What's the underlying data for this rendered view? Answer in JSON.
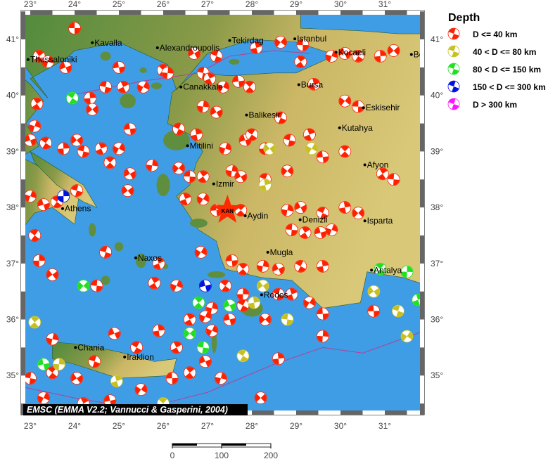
{
  "map": {
    "lon_range": [
      22.8,
      31.9
    ],
    "lat_range": [
      34.3,
      41.5
    ],
    "lon_ticks": [
      23,
      24,
      25,
      26,
      27,
      28,
      29,
      30,
      31
    ],
    "lat_ticks": [
      35,
      36,
      37,
      38,
      39,
      40,
      41
    ],
    "degree_symbol": "°",
    "colors": {
      "sea": "#3f9de6",
      "lowland": "#4f8a3c",
      "upland": "#cbb766",
      "fault": "#b0409a"
    },
    "credit": "EMSC (EMMA V2.2; Vannucci & Gasperini, 2004)",
    "marker": {
      "label": "KAN",
      "lon": 27.45,
      "lat": 37.95,
      "color": "#ff2a00"
    },
    "cities": [
      {
        "name": "Thessaloniki",
        "lon": 22.95,
        "lat": 40.64
      },
      {
        "name": "Kavalla",
        "lon": 24.4,
        "lat": 40.94
      },
      {
        "name": "Alexandroupolis",
        "lon": 25.87,
        "lat": 40.85
      },
      {
        "name": "Tekirdag",
        "lon": 27.5,
        "lat": 40.98
      },
      {
        "name": "Istanbul",
        "lon": 28.97,
        "lat": 41.01
      },
      {
        "name": "Kocaeli",
        "lon": 29.9,
        "lat": 40.77
      },
      {
        "name": "Bolu",
        "lon": 31.6,
        "lat": 40.73
      },
      {
        "name": "Canakkale",
        "lon": 26.4,
        "lat": 40.15
      },
      {
        "name": "Bursa",
        "lon": 29.06,
        "lat": 40.19
      },
      {
        "name": "Eskisehir",
        "lon": 30.52,
        "lat": 39.78
      },
      {
        "name": "Balikesir",
        "lon": 27.88,
        "lat": 39.65
      },
      {
        "name": "Kutahya",
        "lon": 29.98,
        "lat": 39.42
      },
      {
        "name": "Mitilini",
        "lon": 26.55,
        "lat": 39.1
      },
      {
        "name": "Afyon",
        "lon": 30.55,
        "lat": 38.76
      },
      {
        "name": "Izmir",
        "lon": 27.14,
        "lat": 38.42
      },
      {
        "name": "Athens",
        "lon": 23.73,
        "lat": 37.98
      },
      {
        "name": "Aydin",
        "lon": 27.85,
        "lat": 37.85
      },
      {
        "name": "Denizli",
        "lon": 29.09,
        "lat": 37.78
      },
      {
        "name": "Isparta",
        "lon": 30.55,
        "lat": 37.76
      },
      {
        "name": "Mugla",
        "lon": 28.36,
        "lat": 37.2
      },
      {
        "name": "Naxos",
        "lon": 25.38,
        "lat": 37.1
      },
      {
        "name": "Rodos",
        "lon": 28.22,
        "lat": 36.44
      },
      {
        "name": "Antalya",
        "lon": 30.7,
        "lat": 36.88
      },
      {
        "name": "Chania",
        "lon": 24.02,
        "lat": 35.5
      },
      {
        "name": "Iraklion",
        "lon": 25.13,
        "lat": 35.33
      }
    ],
    "events": [
      [
        24.0,
        41.2,
        "r"
      ],
      [
        23.2,
        40.7,
        "r"
      ],
      [
        23.4,
        40.6,
        "r"
      ],
      [
        23.8,
        40.5,
        "r"
      ],
      [
        23.95,
        39.95,
        "g"
      ],
      [
        24.35,
        39.95,
        "r"
      ],
      [
        24.4,
        39.75,
        "r"
      ],
      [
        24.7,
        40.15,
        "r"
      ],
      [
        25.1,
        40.15,
        "r"
      ],
      [
        25.55,
        40.15,
        "r"
      ],
      [
        25.0,
        40.5,
        "r"
      ],
      [
        26.0,
        40.45,
        "r"
      ],
      [
        26.1,
        40.4,
        "r"
      ],
      [
        26.7,
        40.75,
        "r"
      ],
      [
        27.2,
        40.7,
        "r"
      ],
      [
        28.1,
        40.85,
        "r"
      ],
      [
        28.65,
        40.95,
        "r"
      ],
      [
        29.15,
        40.9,
        "r"
      ],
      [
        29.1,
        40.6,
        "r"
      ],
      [
        29.8,
        40.7,
        "r"
      ],
      [
        30.1,
        40.75,
        "r"
      ],
      [
        30.4,
        40.7,
        "r"
      ],
      [
        30.9,
        40.7,
        "r"
      ],
      [
        31.2,
        40.8,
        "r"
      ],
      [
        26.9,
        40.4,
        "r"
      ],
      [
        27.05,
        40.3,
        "r"
      ],
      [
        27.35,
        40.15,
        "r"
      ],
      [
        27.7,
        40.25,
        "r"
      ],
      [
        27.95,
        40.15,
        "r"
      ],
      [
        26.9,
        39.8,
        "r"
      ],
      [
        27.2,
        39.7,
        "r"
      ],
      [
        28.65,
        39.6,
        "r"
      ],
      [
        29.4,
        40.2,
        "r"
      ],
      [
        30.1,
        39.9,
        "r"
      ],
      [
        30.4,
        39.8,
        "r"
      ],
      [
        23.15,
        39.85,
        "r"
      ],
      [
        23.1,
        39.45,
        "r"
      ],
      [
        23.0,
        39.2,
        "r"
      ],
      [
        23.35,
        39.15,
        "r"
      ],
      [
        23.75,
        39.05,
        "r"
      ],
      [
        24.05,
        39.2,
        "r"
      ],
      [
        24.2,
        39.0,
        "r"
      ],
      [
        24.6,
        39.05,
        "r"
      ],
      [
        25.0,
        39.05,
        "r"
      ],
      [
        25.25,
        39.4,
        "r"
      ],
      [
        24.8,
        38.8,
        "r"
      ],
      [
        25.75,
        38.75,
        "r"
      ],
      [
        25.25,
        38.6,
        "r"
      ],
      [
        26.35,
        39.4,
        "r"
      ],
      [
        26.75,
        39.3,
        "r"
      ],
      [
        26.35,
        38.7,
        "r"
      ],
      [
        26.6,
        38.55,
        "r"
      ],
      [
        26.9,
        38.55,
        "r"
      ],
      [
        27.4,
        39.05,
        "r"
      ],
      [
        27.85,
        39.2,
        "r"
      ],
      [
        28.0,
        39.3,
        "r"
      ],
      [
        28.3,
        39.05,
        "r"
      ],
      [
        28.4,
        39.05,
        "y"
      ],
      [
        28.85,
        39.2,
        "r"
      ],
      [
        29.3,
        39.3,
        "r"
      ],
      [
        29.35,
        39.05,
        "y"
      ],
      [
        29.6,
        38.9,
        "r"
      ],
      [
        30.1,
        39.0,
        "r"
      ],
      [
        27.55,
        38.65,
        "r"
      ],
      [
        27.75,
        38.55,
        "r"
      ],
      [
        28.3,
        38.5,
        "r"
      ],
      [
        28.3,
        38.4,
        "y"
      ],
      [
        28.8,
        38.65,
        "r"
      ],
      [
        31.2,
        38.5,
        "r"
      ],
      [
        30.95,
        38.6,
        "r"
      ],
      [
        23.0,
        38.2,
        "r"
      ],
      [
        23.3,
        38.05,
        "r"
      ],
      [
        23.6,
        38.1,
        "r"
      ],
      [
        23.75,
        38.2,
        "b"
      ],
      [
        25.2,
        38.3,
        "r"
      ],
      [
        24.05,
        38.3,
        "r"
      ],
      [
        26.5,
        38.15,
        "r"
      ],
      [
        26.9,
        38.15,
        "r"
      ],
      [
        27.2,
        37.95,
        "r"
      ],
      [
        27.75,
        37.95,
        "r"
      ],
      [
        28.8,
        37.95,
        "r"
      ],
      [
        29.1,
        38.0,
        "r"
      ],
      [
        29.6,
        37.9,
        "r"
      ],
      [
        30.1,
        38.0,
        "r"
      ],
      [
        30.4,
        37.9,
        "r"
      ],
      [
        28.9,
        37.6,
        "r"
      ],
      [
        29.2,
        37.55,
        "r"
      ],
      [
        29.8,
        37.6,
        "r"
      ],
      [
        29.55,
        37.55,
        "r"
      ],
      [
        23.1,
        37.5,
        "r"
      ],
      [
        23.2,
        37.05,
        "r"
      ],
      [
        23.5,
        36.8,
        "r"
      ],
      [
        24.7,
        37.2,
        "r"
      ],
      [
        25.9,
        37.0,
        "r"
      ],
      [
        26.85,
        37.2,
        "r"
      ],
      [
        27.55,
        37.05,
        "r"
      ],
      [
        27.8,
        36.9,
        "r"
      ],
      [
        28.25,
        36.95,
        "r"
      ],
      [
        28.6,
        36.9,
        "r"
      ],
      [
        29.1,
        36.95,
        "r"
      ],
      [
        29.6,
        36.95,
        "r"
      ],
      [
        24.2,
        36.6,
        "g"
      ],
      [
        24.5,
        36.6,
        "r"
      ],
      [
        25.8,
        36.65,
        "r"
      ],
      [
        26.3,
        36.6,
        "r"
      ],
      [
        26.95,
        36.6,
        "b"
      ],
      [
        27.4,
        36.6,
        "r"
      ],
      [
        27.8,
        36.45,
        "r"
      ],
      [
        28.25,
        36.6,
        "y"
      ],
      [
        28.6,
        36.45,
        "r"
      ],
      [
        28.9,
        36.45,
        "r"
      ],
      [
        29.3,
        36.3,
        "r"
      ],
      [
        29.6,
        36.1,
        "r"
      ],
      [
        26.8,
        36.3,
        "g"
      ],
      [
        27.1,
        36.2,
        "r"
      ],
      [
        27.5,
        36.25,
        "g"
      ],
      [
        27.8,
        36.25,
        "r"
      ],
      [
        28.05,
        36.3,
        "y"
      ],
      [
        28.3,
        36.0,
        "r"
      ],
      [
        28.8,
        36.0,
        "y"
      ],
      [
        26.6,
        36.0,
        "r"
      ],
      [
        26.95,
        36.05,
        "r"
      ],
      [
        27.5,
        36.0,
        "r"
      ],
      [
        30.9,
        36.9,
        "g"
      ],
      [
        31.5,
        36.85,
        "g"
      ],
      [
        30.75,
        36.5,
        "y"
      ],
      [
        31.3,
        36.15,
        "y"
      ],
      [
        31.75,
        36.35,
        "g"
      ],
      [
        31.5,
        35.7,
        "y"
      ],
      [
        30.75,
        36.15,
        "r"
      ],
      [
        23.1,
        35.95,
        "y"
      ],
      [
        23.5,
        35.65,
        "r"
      ],
      [
        24.9,
        35.75,
        "r"
      ],
      [
        25.4,
        35.5,
        "r"
      ],
      [
        25.9,
        35.8,
        "r"
      ],
      [
        26.6,
        35.75,
        "g"
      ],
      [
        26.9,
        35.5,
        "g"
      ],
      [
        26.3,
        35.5,
        "r"
      ],
      [
        27.1,
        35.8,
        "r"
      ],
      [
        23.3,
        35.2,
        "g"
      ],
      [
        23.5,
        35.05,
        "r"
      ],
      [
        23.65,
        35.2,
        "y"
      ],
      [
        24.05,
        34.95,
        "r"
      ],
      [
        24.45,
        35.25,
        "r"
      ],
      [
        24.95,
        34.9,
        "y"
      ],
      [
        25.5,
        34.75,
        "r"
      ],
      [
        26.2,
        34.95,
        "r"
      ],
      [
        26.6,
        35.05,
        "r"
      ],
      [
        27.3,
        34.95,
        "r"
      ],
      [
        26.95,
        35.25,
        "r"
      ],
      [
        27.8,
        35.35,
        "y"
      ],
      [
        28.6,
        35.3,
        "r"
      ],
      [
        28.2,
        34.6,
        "r"
      ],
      [
        23.0,
        34.95,
        "r"
      ],
      [
        24.2,
        34.5,
        "r"
      ],
      [
        23.3,
        34.6,
        "r"
      ],
      [
        24.8,
        34.55,
        "r"
      ],
      [
        26.0,
        34.5,
        "y"
      ],
      [
        29.6,
        35.7,
        "r"
      ]
    ]
  },
  "legend": {
    "title": "Depth",
    "items": [
      {
        "label": "D <= 40 km",
        "key": "r",
        "color": "#ff2000"
      },
      {
        "label": "40 < D <= 80 km",
        "key": "y",
        "color": "#c8c020"
      },
      {
        "label": "80 < D <= 150 km",
        "key": "g",
        "color": "#20e020"
      },
      {
        "label": "150 < D <= 300 km",
        "key": "b",
        "color": "#0010e0"
      },
      {
        "label": "D > 300 km",
        "key": "m",
        "color": "#ff10ff"
      }
    ]
  },
  "scale_bar": {
    "labels": [
      "0",
      "100",
      "200"
    ],
    "max": 200
  }
}
